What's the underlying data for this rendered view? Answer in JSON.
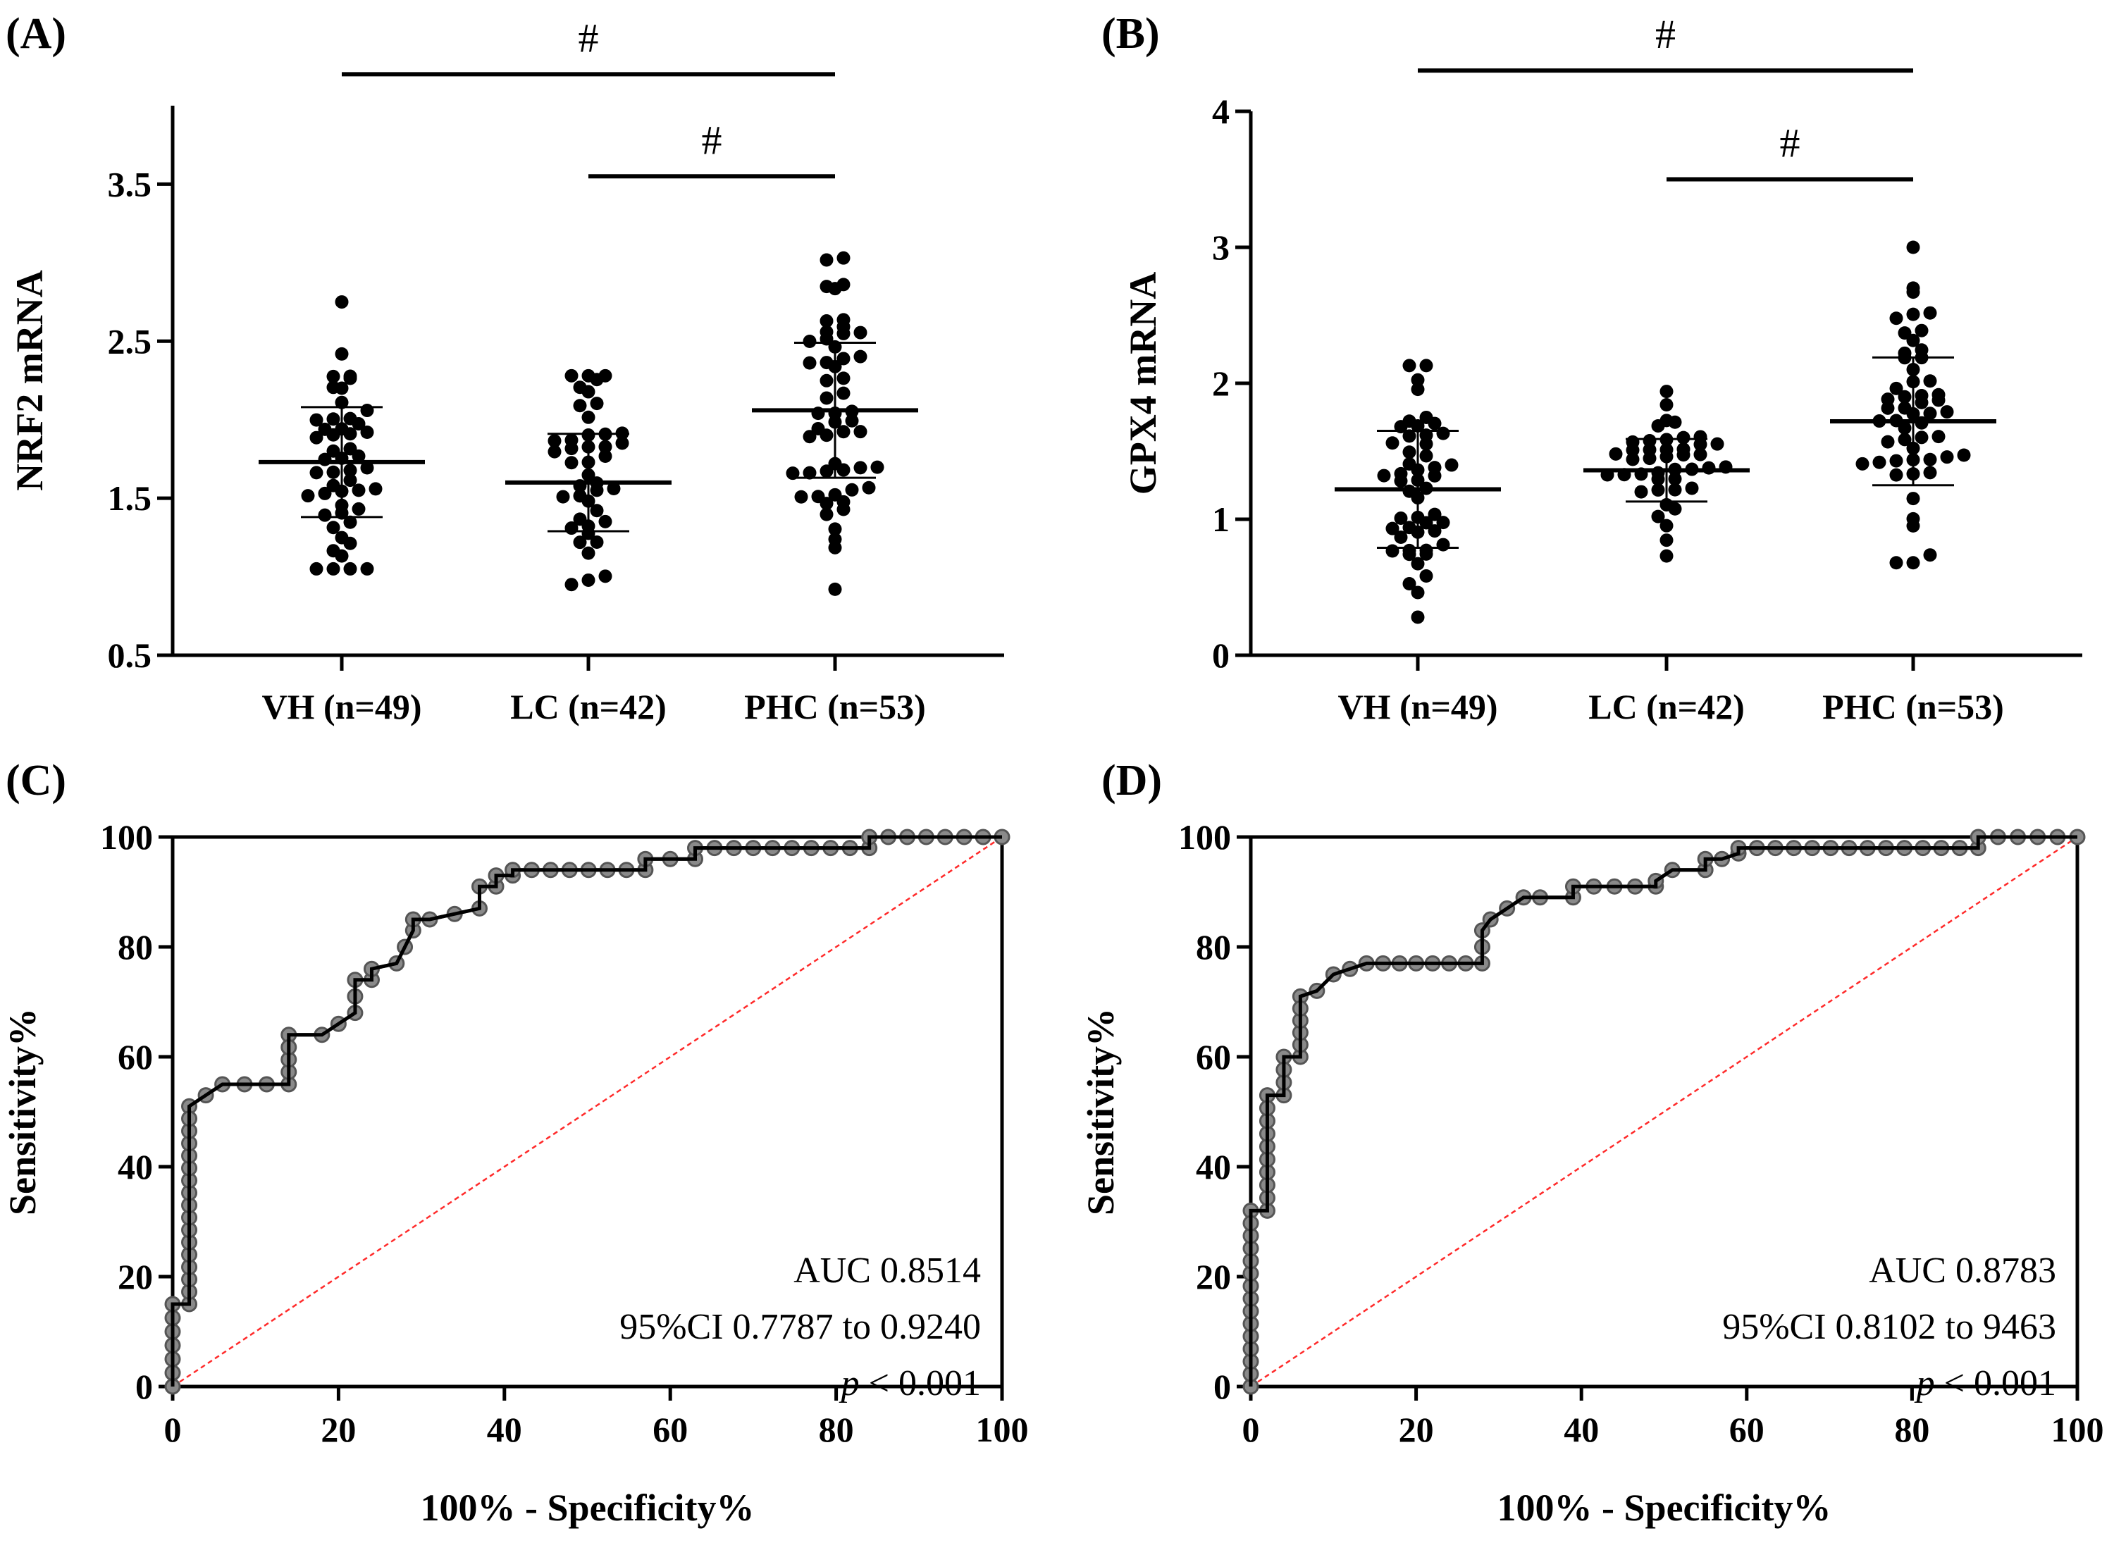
{
  "chart_data": [
    {
      "id": "A",
      "panel_label": "(A)",
      "type": "scatter",
      "ylabel": "NRF2 mRNA",
      "ylim": [
        0.5,
        4.0
      ],
      "yticks": [
        0.5,
        1.5,
        2.5,
        3.5
      ],
      "ytick_labels": [
        "0.5",
        "1.5",
        "2.5",
        "3.5"
      ],
      "categories": [
        "VH (n=49)",
        "LC (n=42)",
        "PHC (n=53)"
      ],
      "groups": [
        {
          "name": "VH",
          "n": 49,
          "mean": 1.73,
          "sd": 0.35,
          "min": 1.05,
          "max": 2.75
        },
        {
          "name": "LC",
          "n": 42,
          "mean": 1.6,
          "sd": 0.31,
          "min": 0.95,
          "max": 2.28
        },
        {
          "name": "PHC",
          "n": 53,
          "mean": 2.06,
          "sd": 0.43,
          "min": 0.92,
          "max": 3.03
        }
      ],
      "significance": [
        {
          "from": 0,
          "to": 2,
          "label": "#",
          "y": 4.2
        },
        {
          "from": 1,
          "to": 2,
          "label": "#",
          "y": 3.55
        }
      ]
    },
    {
      "id": "B",
      "panel_label": "(B)",
      "type": "scatter",
      "ylabel": "GPX4 mRNA",
      "ylim": [
        0,
        4
      ],
      "yticks": [
        0,
        1,
        2,
        3,
        4
      ],
      "ytick_labels": [
        "0",
        "1",
        "2",
        "3",
        "4"
      ],
      "categories": [
        "VH (n=49)",
        "LC (n=42)",
        "PHC (n=53)"
      ],
      "groups": [
        {
          "name": "VH",
          "n": 49,
          "mean": 1.22,
          "sd": 0.43,
          "min": 0.28,
          "max": 2.13
        },
        {
          "name": "LC",
          "n": 42,
          "mean": 1.36,
          "sd": 0.23,
          "min": 0.73,
          "max": 1.94
        },
        {
          "name": "PHC",
          "n": 53,
          "mean": 1.72,
          "sd": 0.47,
          "min": 0.68,
          "max": 3.0
        }
      ],
      "significance": [
        {
          "from": 0,
          "to": 2,
          "label": "#",
          "y": 4.3
        },
        {
          "from": 1,
          "to": 2,
          "label": "#",
          "y": 3.5
        }
      ]
    },
    {
      "id": "C",
      "panel_label": "(C)",
      "type": "line",
      "xlabel": "100% - Specificity%",
      "ylabel": "Sensitivity%",
      "xlim": [
        0,
        100
      ],
      "ylim": [
        0,
        100
      ],
      "ticks": [
        0,
        20,
        40,
        60,
        80,
        100
      ],
      "tick_labels": [
        "0",
        "20",
        "40",
        "60",
        "80",
        "100"
      ],
      "annotation": [
        "AUC 0.8514",
        "95%CI 0.7787 to 0.9240"
      ],
      "p_label": "p",
      "p_value": " < 0.001",
      "x": [
        0,
        0,
        2,
        2,
        4,
        6,
        14,
        14,
        18,
        20,
        22,
        22,
        24,
        24,
        27,
        29,
        29,
        31,
        37,
        37,
        39,
        39,
        41,
        41,
        57,
        57,
        63,
        63,
        84,
        84,
        100
      ],
      "y": [
        0,
        15,
        15,
        51,
        53,
        55,
        55,
        64,
        64,
        66,
        68,
        74,
        74,
        76,
        77,
        83,
        85,
        85,
        87,
        91,
        91,
        93,
        93,
        94,
        94,
        96,
        96,
        98,
        98,
        100,
        100
      ]
    },
    {
      "id": "D",
      "panel_label": "(D)",
      "type": "line",
      "xlabel": "100% - Specificity%",
      "ylabel": "Sensitivity%",
      "xlim": [
        0,
        100
      ],
      "ylim": [
        0,
        100
      ],
      "ticks": [
        0,
        20,
        40,
        60,
        80,
        100
      ],
      "tick_labels": [
        "0",
        "20",
        "40",
        "60",
        "80",
        "100"
      ],
      "annotation": [
        "AUC 0.8783",
        "95%CI 0.8102 to 9463"
      ],
      "p_label": "p",
      "p_value": " < 0.001",
      "x": [
        0,
        0,
        2,
        2,
        4,
        4,
        6,
        6,
        8,
        10,
        12,
        14,
        16,
        18,
        20,
        22,
        24,
        26,
        28,
        28,
        29,
        31,
        33,
        35,
        39,
        39,
        49,
        49,
        51,
        55,
        55,
        57,
        59,
        59,
        88,
        88,
        100
      ],
      "y": [
        0,
        32,
        32,
        53,
        53,
        60,
        60,
        71,
        72,
        75,
        76,
        77,
        77,
        77,
        77,
        77,
        77,
        77,
        77,
        83,
        85,
        87,
        89,
        89,
        89,
        91,
        91,
        92,
        94,
        94,
        96,
        96,
        97,
        98,
        98,
        100,
        100
      ]
    }
  ]
}
